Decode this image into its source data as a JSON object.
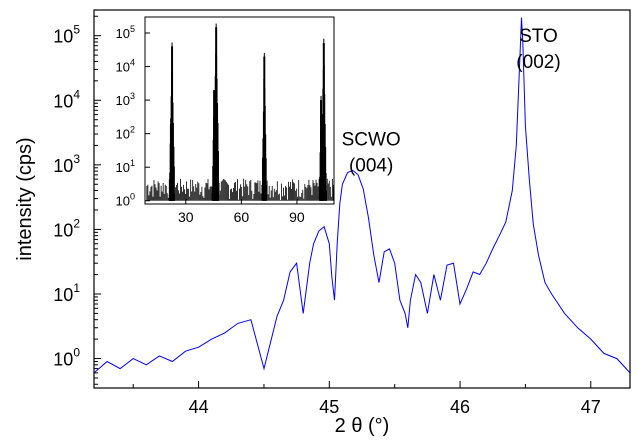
{
  "chart_data": [
    {
      "type": "line",
      "xlabel": "2 θ (°)",
      "ylabel": "intensity (cps)",
      "xlim": [
        43.2,
        47.3
      ],
      "ylim": [
        0.35,
        250000
      ],
      "y_scale": "log",
      "x_ticks": [
        {
          "value": 44,
          "label": "44"
        },
        {
          "value": 45,
          "label": "45"
        },
        {
          "value": 46,
          "label": "46"
        },
        {
          "value": 47,
          "label": "47"
        }
      ],
      "y_ticks": [
        {
          "value": 1,
          "base": "10",
          "exp": "0"
        },
        {
          "value": 10,
          "base": "10",
          "exp": "1"
        },
        {
          "value": 100,
          "base": "10",
          "exp": "2"
        },
        {
          "value": 1000,
          "base": "10",
          "exp": "3"
        },
        {
          "value": 10000,
          "base": "10",
          "exp": "4"
        },
        {
          "value": 100000,
          "base": "10",
          "exp": "5"
        }
      ],
      "annotations": [
        {
          "lines": [
            "SCWO",
            "(004)"
          ],
          "x": 45.32,
          "y": 2000
        },
        {
          "lines": [
            "STO",
            "(002)"
          ],
          "x": 46.6,
          "y": 80000
        }
      ],
      "color": "#0000ff",
      "series": [
        {
          "x": [
            43.2,
            43.3,
            43.4,
            43.5,
            43.6,
            43.7,
            43.8,
            43.9,
            44.0,
            44.1,
            44.2,
            44.3,
            44.4,
            44.5,
            44.6,
            44.65,
            44.7,
            44.75,
            44.8,
            44.85,
            44.88,
            44.92,
            44.96,
            45.0,
            45.02,
            45.04,
            45.06,
            45.08,
            45.1,
            45.14,
            45.18,
            45.22,
            45.26,
            45.3,
            45.34,
            45.38,
            45.42,
            45.46,
            45.5,
            45.54,
            45.58,
            45.6,
            45.62,
            45.66,
            45.7,
            45.75,
            45.8,
            45.85,
            45.9,
            45.95,
            46.0,
            46.05,
            46.1,
            46.15,
            46.2,
            46.25,
            46.3,
            46.35,
            46.4,
            46.43,
            46.46,
            46.47,
            46.48,
            46.5,
            46.53,
            46.56,
            46.6,
            46.65,
            46.7,
            46.8,
            46.9,
            47.0,
            47.1,
            47.2,
            47.3
          ],
          "y": [
            0.6,
            0.9,
            0.7,
            1.0,
            0.8,
            1.1,
            0.9,
            1.3,
            1.5,
            2.0,
            2.5,
            3.5,
            4.0,
            0.7,
            4.5,
            8.0,
            22,
            30,
            5.0,
            30,
            60,
            95,
            110,
            60,
            18,
            8,
            60,
            250,
            500,
            760,
            820,
            700,
            420,
            150,
            40,
            15,
            45,
            50,
            30,
            8,
            5,
            3,
            8,
            20,
            15,
            5,
            20,
            8,
            28,
            30,
            7,
            12,
            22,
            20,
            30,
            50,
            80,
            130,
            400,
            2000,
            60000,
            190000,
            80000,
            4000,
            600,
            120,
            40,
            15,
            10,
            5,
            3,
            2,
            1.2,
            1.0,
            0.6
          ]
        }
      ]
    },
    {
      "type": "bar",
      "inset": true,
      "xlim": [
        8,
        110
      ],
      "ylim": [
        0.8,
        300000
      ],
      "y_scale": "log",
      "x_ticks": [
        {
          "value": 30,
          "label": "30"
        },
        {
          "value": 60,
          "label": "60"
        },
        {
          "value": 90,
          "label": "90"
        }
      ],
      "y_ticks": [
        {
          "value": 1,
          "base": "10",
          "exp": "0"
        },
        {
          "value": 10,
          "base": "10",
          "exp": "1"
        },
        {
          "value": 100,
          "base": "10",
          "exp": "2"
        },
        {
          "value": 1000,
          "base": "10",
          "exp": "3"
        },
        {
          "value": 10000,
          "base": "10",
          "exp": "4"
        },
        {
          "value": 100000,
          "base": "10",
          "exp": "5"
        }
      ],
      "color": "#000000",
      "peaks": [
        {
          "x": 22.6,
          "y": 40000
        },
        {
          "x": 22.0,
          "y": 200
        },
        {
          "x": 46.4,
          "y": 150000
        },
        {
          "x": 45.3,
          "y": 2000
        },
        {
          "x": 72.4,
          "y": 20000
        },
        {
          "x": 104.5,
          "y": 50000
        },
        {
          "x": 103.0,
          "y": 1000
        }
      ]
    }
  ]
}
